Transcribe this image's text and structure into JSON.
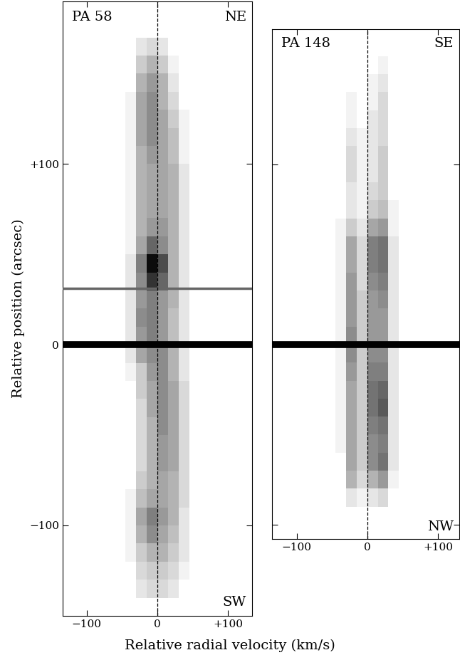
{
  "x_label": "Relative radial velocity (km/s)",
  "chart_data": [
    {
      "type": "heatmap",
      "title": "PA 58",
      "top_label": "NE",
      "bottom_label": "SW",
      "ylabel": "Relative position (arcsec)",
      "xlim": [
        -134,
        134
      ],
      "ylim": [
        -150,
        190
      ],
      "xticks": [
        {
          "value": -100,
          "label": "−100"
        },
        0,
        {
          "value": 100,
          "label": "+100"
        }
      ],
      "yticks": [
        {
          "value": -100,
          "label": "−100"
        },
        0,
        {
          "value": 100,
          "label": "+100"
        }
      ],
      "tick_labels": true,
      "reference_velocity": 0,
      "color_range": [
        0,
        1
      ],
      "velocity_bins": [
        -60,
        -45,
        -30,
        -15,
        0,
        15,
        30,
        45,
        60
      ],
      "position_bins": [
        -140,
        -130,
        -120,
        -110,
        -100,
        -90,
        -80,
        -70,
        -60,
        -50,
        -40,
        -30,
        -20,
        -10,
        0,
        10,
        20,
        30,
        40,
        50,
        60,
        70,
        80,
        90,
        100,
        110,
        120,
        130,
        140,
        150,
        160,
        170
      ],
      "cells": [
        [
          0,
          0,
          0.1,
          0.15,
          0.15,
          0.1,
          0,
          0
        ],
        [
          0,
          0,
          0.15,
          0.2,
          0.2,
          0.15,
          0.05,
          0
        ],
        [
          0,
          0.05,
          0.2,
          0.3,
          0.3,
          0.2,
          0.1,
          0
        ],
        [
          0,
          0.05,
          0.3,
          0.45,
          0.35,
          0.25,
          0.1,
          0
        ],
        [
          0,
          0.05,
          0.35,
          0.5,
          0.4,
          0.3,
          0.1,
          0
        ],
        [
          0,
          0.05,
          0.25,
          0.35,
          0.35,
          0.3,
          0.15,
          0
        ],
        [
          0,
          0,
          0.2,
          0.3,
          0.35,
          0.3,
          0.15,
          0
        ],
        [
          0,
          0,
          0.15,
          0.3,
          0.4,
          0.35,
          0.15,
          0
        ],
        [
          0,
          0,
          0.15,
          0.3,
          0.4,
          0.35,
          0.15,
          0
        ],
        [
          0,
          0,
          0.15,
          0.3,
          0.45,
          0.35,
          0.15,
          0
        ],
        [
          0,
          0,
          0.15,
          0.35,
          0.45,
          0.35,
          0.15,
          0
        ],
        [
          0,
          0,
          0.2,
          0.35,
          0.45,
          0.35,
          0.15,
          0
        ],
        [
          0,
          0.05,
          0.2,
          0.4,
          0.45,
          0.3,
          0.1,
          0
        ],
        [
          0,
          0.1,
          0.35,
          0.45,
          0.45,
          0.3,
          0.1,
          0
        ],
        [
          0,
          0.1,
          0.4,
          0.5,
          0.4,
          0.25,
          0.1,
          0
        ],
        [
          0,
          0.1,
          0.45,
          0.5,
          0.4,
          0.25,
          0.1,
          0
        ],
        [
          0,
          0.1,
          0.4,
          0.5,
          0.4,
          0.3,
          0.1,
          0
        ],
        [
          0,
          0.1,
          0.45,
          0.8,
          0.6,
          0.3,
          0.1,
          0
        ],
        [
          0,
          0.1,
          0.5,
          0.95,
          0.7,
          0.3,
          0.1,
          0
        ],
        [
          0,
          0.05,
          0.35,
          0.6,
          0.45,
          0.3,
          0.1,
          0
        ],
        [
          0,
          0.05,
          0.3,
          0.4,
          0.4,
          0.3,
          0.1,
          0
        ],
        [
          0,
          0.05,
          0.3,
          0.35,
          0.35,
          0.3,
          0.1,
          0
        ],
        [
          0,
          0.05,
          0.3,
          0.35,
          0.35,
          0.3,
          0.1,
          0
        ],
        [
          0,
          0.05,
          0.3,
          0.35,
          0.35,
          0.3,
          0.1,
          0
        ],
        [
          0,
          0.05,
          0.3,
          0.4,
          0.35,
          0.25,
          0.05,
          0
        ],
        [
          0,
          0.05,
          0.35,
          0.45,
          0.35,
          0.25,
          0.05,
          0
        ],
        [
          0,
          0.05,
          0.35,
          0.45,
          0.35,
          0.2,
          0.05,
          0
        ],
        [
          0,
          0.05,
          0.35,
          0.45,
          0.3,
          0.15,
          0,
          0
        ],
        [
          0,
          0,
          0.3,
          0.4,
          0.3,
          0.1,
          0,
          0
        ],
        [
          0,
          0,
          0.2,
          0.3,
          0.2,
          0.05,
          0,
          0
        ],
        [
          0,
          0,
          0.1,
          0.15,
          0.1,
          0,
          0,
          0
        ]
      ],
      "continuum": [
        {
          "position": 0,
          "intensity": 1.0
        },
        {
          "position": 31,
          "intensity": 0.6
        }
      ]
    },
    {
      "type": "heatmap",
      "title": "PA 148",
      "top_label": "SE",
      "bottom_label": "NW",
      "xlim": [
        -135,
        130
      ],
      "ylim": [
        -108,
        175
      ],
      "xticks": [
        {
          "value": -100,
          "label": "−100"
        },
        0,
        {
          "value": 100,
          "label": "+100"
        }
      ],
      "yticks": [
        -100,
        0,
        100
      ],
      "tick_labels": "x",
      "reference_velocity": 0,
      "color_range": [
        0,
        1
      ],
      "velocity_bins": [
        -60,
        -45,
        -30,
        -15,
        0,
        15,
        30,
        45,
        60
      ],
      "position_bins": [
        -90,
        -80,
        -70,
        -60,
        -50,
        -40,
        -30,
        -20,
        -10,
        0,
        10,
        20,
        30,
        40,
        50,
        60,
        70,
        80,
        90,
        100,
        110,
        120,
        130,
        140,
        150,
        160
      ],
      "cells": [
        [
          0,
          0,
          0.1,
          0.05,
          0.1,
          0.15,
          0,
          0
        ],
        [
          0,
          0,
          0.3,
          0.15,
          0.3,
          0.4,
          0.05,
          0
        ],
        [
          0,
          0,
          0.35,
          0.2,
          0.45,
          0.55,
          0.1,
          0
        ],
        [
          0,
          0.05,
          0.35,
          0.2,
          0.45,
          0.5,
          0.1,
          0
        ],
        [
          0,
          0.05,
          0.35,
          0.2,
          0.5,
          0.55,
          0.1,
          0
        ],
        [
          0,
          0.05,
          0.35,
          0.2,
          0.55,
          0.65,
          0.1,
          0
        ],
        [
          0,
          0.05,
          0.35,
          0.2,
          0.55,
          0.6,
          0.1,
          0
        ],
        [
          0,
          0.05,
          0.4,
          0.2,
          0.5,
          0.5,
          0.1,
          0
        ],
        [
          0,
          0.05,
          0.45,
          0.2,
          0.45,
          0.45,
          0.1,
          0
        ],
        [
          0,
          0.05,
          0.45,
          0.2,
          0.4,
          0.4,
          0.1,
          0
        ],
        [
          0,
          0.05,
          0.4,
          0.2,
          0.4,
          0.4,
          0.1,
          0
        ],
        [
          0,
          0.05,
          0.4,
          0.2,
          0.4,
          0.45,
          0.1,
          0
        ],
        [
          0,
          0.05,
          0.4,
          0.15,
          0.45,
          0.5,
          0.1,
          0
        ],
        [
          0,
          0.05,
          0.35,
          0.15,
          0.5,
          0.55,
          0.1,
          0
        ],
        [
          0,
          0.05,
          0.35,
          0.15,
          0.5,
          0.55,
          0.1,
          0
        ],
        [
          0,
          0.05,
          0.2,
          0.1,
          0.35,
          0.4,
          0.05,
          0
        ],
        [
          0,
          0,
          0.1,
          0.05,
          0.2,
          0.25,
          0.05,
          0
        ],
        [
          0,
          0,
          0.1,
          0.05,
          0.15,
          0.2,
          0,
          0
        ],
        [
          0,
          0,
          0.15,
          0.05,
          0.1,
          0.2,
          0,
          0
        ],
        [
          0,
          0,
          0.15,
          0.05,
          0.1,
          0.2,
          0,
          0
        ],
        [
          0,
          0,
          0.1,
          0.05,
          0.1,
          0.15,
          0,
          0
        ],
        [
          0,
          0,
          0.05,
          0,
          0.1,
          0.15,
          0,
          0
        ],
        [
          0,
          0,
          0.05,
          0,
          0.05,
          0.15,
          0,
          0
        ],
        [
          0,
          0,
          0,
          0,
          0.05,
          0.1,
          0,
          0
        ],
        [
          0,
          0,
          0,
          0,
          0,
          0.05,
          0,
          0
        ]
      ],
      "continuum": [
        {
          "position": 0,
          "intensity": 1.0
        }
      ]
    }
  ]
}
